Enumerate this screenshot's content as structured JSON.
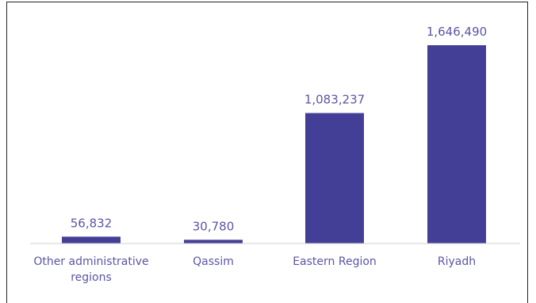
{
  "chart_data": {
    "type": "bar",
    "categories": [
      "Other administrative regions",
      "Qassim",
      "Eastern Region",
      "Riyadh"
    ],
    "category_lines": [
      [
        "Other administrative",
        "regions"
      ],
      [
        "Qassim"
      ],
      [
        "Eastern Region"
      ],
      [
        "Riyadh"
      ]
    ],
    "values": [
      56832,
      30780,
      1083237,
      1646490
    ],
    "value_labels": [
      "56,832",
      "30,780",
      "1,083,237",
      "1,646,490"
    ],
    "ylim": [
      0,
      1646490
    ],
    "grid": false,
    "legend": "none",
    "bar_color": "#443f96",
    "label_color": "#5a55a6",
    "axis_color": "#d0d0d0"
  }
}
